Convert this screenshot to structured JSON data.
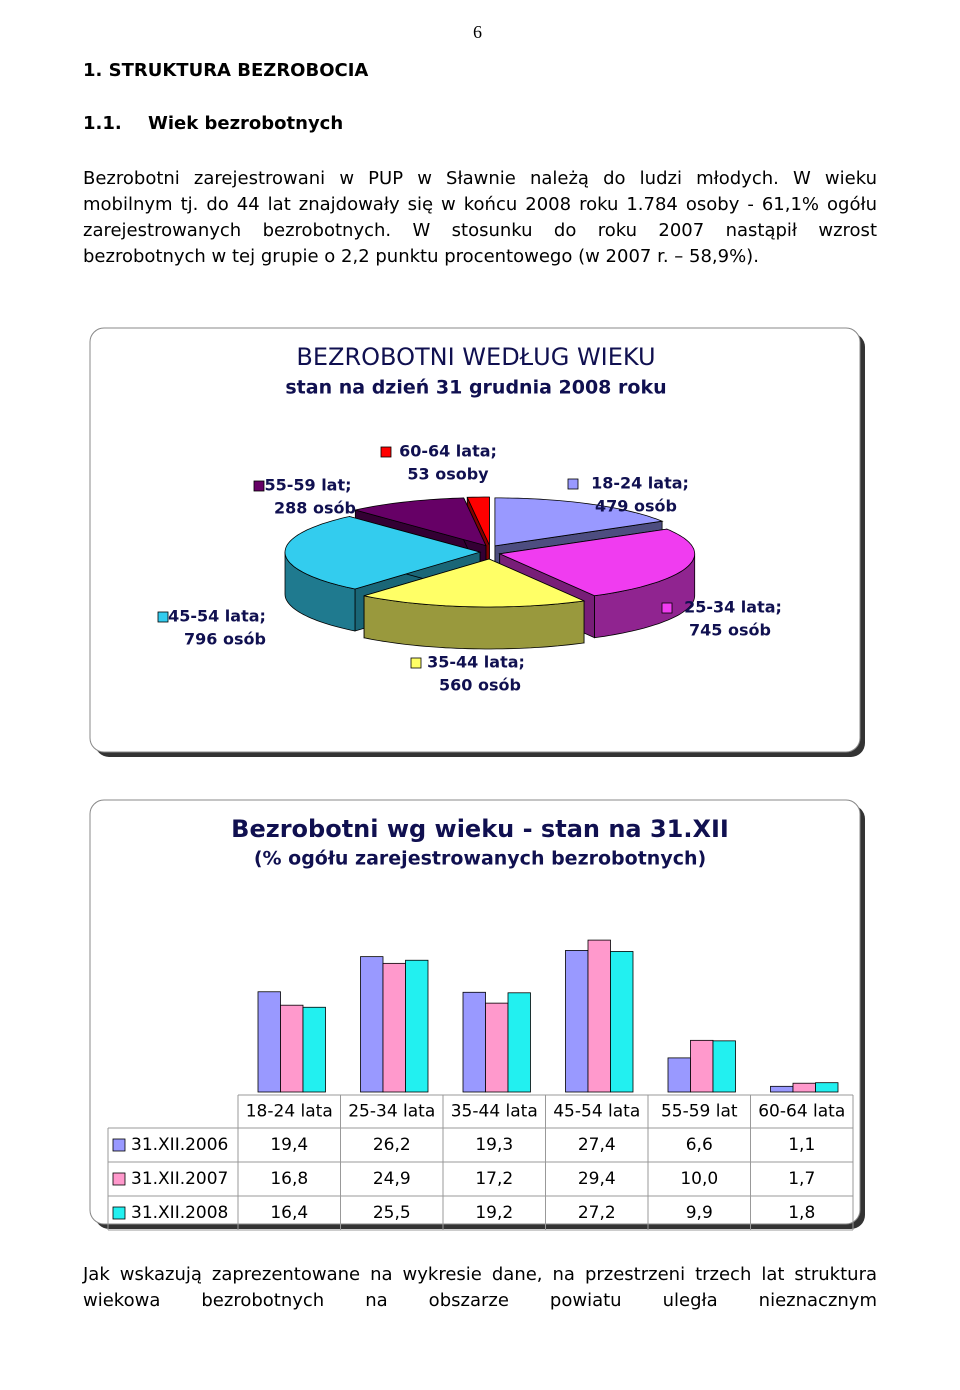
{
  "page_number": "6",
  "heading": "1. STRUKTURA BEZROBOCIA",
  "subheading_number": "1.1.",
  "subheading": "Wiek bezrobotnych",
  "paragraph": "Bezrobotni zarejestrowani w PUP w Sławnie należą do ludzi młodych. W wieku mobilnym tj. do 44 lat znajdowały się w końcu 2008 roku 1.784 osoby - 61,1% ogółu zarejestrowanych bezrobotnych. W stosunku do roku 2007 nastąpił wzrost bezrobotnych w tej grupie o 2,2 punktu procentowego (w 2007 r. – 58,9%).",
  "closing": "Jak wskazują zaprezentowane na wykresie dane, na przestrzeni trzech lat struktura wiekowa bezrobotnych na obszarze powiatu uległa nieznacznym",
  "chart_data": [
    {
      "type": "pie",
      "title": "BEZROBOTNI WEDŁUG WIEKU",
      "subtitle": "stan na dzień 31 grudnia 2008 roku",
      "categories": [
        "18-24 lata;",
        "25-34 lata;",
        "35-44 lata;",
        "45-54 lata;",
        "55-59 lat;",
        "60-64 lata;"
      ],
      "values": [
        479,
        745,
        560,
        796,
        288,
        53
      ],
      "value_labels": [
        "479 osób",
        "745 osób",
        "560 osób",
        "796 osób",
        "288 osób",
        "53 osoby"
      ],
      "colors": [
        "#9999ff",
        "#f03cf0",
        "#ffff66",
        "#33ccee",
        "#660066",
        "#ff0000"
      ]
    },
    {
      "type": "bar",
      "title": "Bezrobotni wg wieku - stan na 31.XII",
      "subtitle": "(% ogółu zarejestrowanych bezrobotnych)",
      "categories": [
        "18-24 lata",
        "25-34 lata",
        "35-44 lata",
        "45-54 lata",
        "55-59 lat",
        "60-64 lata"
      ],
      "ylim": [
        0,
        30
      ],
      "series": [
        {
          "name": "31.XII.2006",
          "color": "#9999ff",
          "values": [
            19.4,
            26.2,
            19.3,
            27.4,
            6.6,
            1.1
          ],
          "value_labels": [
            "19,4",
            "26,2",
            "19,3",
            "27,4",
            "6,6",
            "1,1"
          ]
        },
        {
          "name": "31.XII.2007",
          "color": "#ff99cc",
          "values": [
            16.8,
            24.9,
            17.2,
            29.4,
            10.0,
            1.7
          ],
          "value_labels": [
            "16,8",
            "24,9",
            "17,2",
            "29,4",
            "10,0",
            "1,7"
          ]
        },
        {
          "name": "31.XII.2008",
          "color": "#22f0f0",
          "values": [
            16.4,
            25.5,
            19.2,
            27.2,
            9.9,
            1.8
          ],
          "value_labels": [
            "16,4",
            "25,5",
            "19,2",
            "27,2",
            "9,9",
            "1,8"
          ]
        }
      ]
    }
  ]
}
